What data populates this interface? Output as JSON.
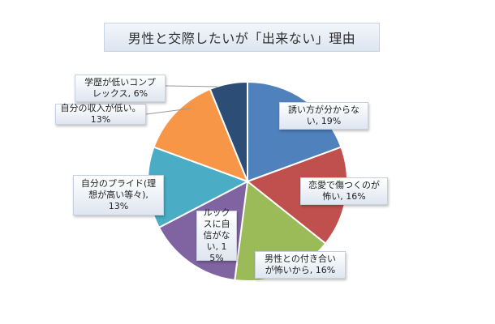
{
  "chart_data": {
    "type": "pie",
    "title": "男性と交際したいが「出来ない」理由",
    "slices": [
      {
        "label": "誘い方が分からない",
        "value": 19,
        "color": "#4f81bd",
        "text": "誘い方が分からな\nい, 19%"
      },
      {
        "label": "恋愛で傷つくのが怖い",
        "value": 16,
        "color": "#c0504d",
        "text": "恋愛で傷つくのが\n怖い, 16%"
      },
      {
        "label": "男性との付き合いが怖いから",
        "value": 16,
        "color": "#9bbb59",
        "text": "男性との付き合い\nが怖いから, 16%"
      },
      {
        "label": "ルックスに自信がない",
        "value": 15,
        "color": "#8064a2",
        "text": "ルック\nスに自\n信がな\nい, 15%"
      },
      {
        "label": "自分のプライド(理想が高い等々)",
        "value": 13,
        "color": "#4bacc6",
        "text": "自分のプライド(理\n想が高い等々),\n13%"
      },
      {
        "label": "自分の収入が低い。",
        "value": 13,
        "color": "#f79646",
        "text": "自分の収入が低い。\n13%"
      },
      {
        "label": "学歴が低いコンプレックス",
        "value": 6,
        "color": "#2c4d75",
        "text": "学歴が低いコンプ\nレックス, 6%"
      }
    ]
  }
}
